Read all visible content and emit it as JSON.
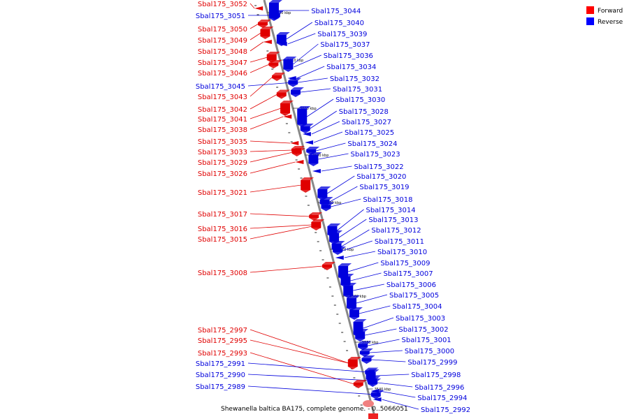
{
  "genome_title": "Shewanella baltica BA175, complete genome. - 0..5066051",
  "legend": {
    "items": [
      {
        "label": "Forward",
        "color": "#ff0000"
      },
      {
        "label": "Reverse",
        "color": "#0000ff"
      }
    ]
  },
  "colors": {
    "forward": "#e00000",
    "reverse": "#0000dd",
    "backbone": "#888888"
  },
  "scale_ticks": [
    "3620 kbp",
    "3610 kbp",
    "3600 kbp",
    "3590 kbp",
    "3580 kbp",
    "3570 kbp",
    "3560 kbp",
    "3550 kbp",
    "3540 kbp"
  ],
  "forward_genes": [
    "Sbal175_3052",
    "Sbal175_3050",
    "Sbal175_3049",
    "Sbal175_3048",
    "Sbal175_3047",
    "Sbal175_3046",
    "Sbal175_3043",
    "Sbal175_3042",
    "Sbal175_3041",
    "Sbal175_3038",
    "Sbal175_3035",
    "Sbal175_3033",
    "Sbal175_3029",
    "Sbal175_3026",
    "Sbal175_3021",
    "Sbal175_3017",
    "Sbal175_3016",
    "Sbal175_3015",
    "Sbal175_3008",
    "Sbal175_2997",
    "Sbal175_2995",
    "Sbal175_2993"
  ],
  "reverse_left_genes": [
    "Sbal175_3051",
    "Sbal175_3045",
    "Sbal175_2991",
    "Sbal175_2990",
    "Sbal175_2989"
  ],
  "reverse_genes": [
    "Sbal175_3044",
    "Sbal175_3040",
    "Sbal175_3039",
    "Sbal175_3037",
    "Sbal175_3036",
    "Sbal175_3034",
    "Sbal175_3032",
    "Sbal175_3031",
    "Sbal175_3030",
    "Sbal175_3028",
    "Sbal175_3027",
    "Sbal175_3025",
    "Sbal175_3024",
    "Sbal175_3023",
    "Sbal175_3022",
    "Sbal175_3020",
    "Sbal175_3019",
    "Sbal175_3018",
    "Sbal175_3014",
    "Sbal175_3013",
    "Sbal175_3012",
    "Sbal175_3011",
    "Sbal175_3010",
    "Sbal175_3009",
    "Sbal175_3007",
    "Sbal175_3006",
    "Sbal175_3005",
    "Sbal175_3004",
    "Sbal175_3003",
    "Sbal175_3002",
    "Sbal175_3001",
    "Sbal175_3000",
    "Sbal175_2999",
    "Sbal175_2998",
    "Sbal175_2996",
    "Sbal175_2994",
    "Sbal175_2992"
  ]
}
